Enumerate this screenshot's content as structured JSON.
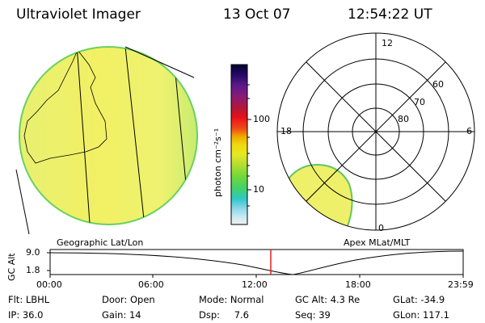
{
  "header": {
    "title": "Ultraviolet Imager",
    "date": "13 Oct 07",
    "time": "12:54:22 UT"
  },
  "colorbar": {
    "unit_label": "photon cm⁻²s⁻¹",
    "ticks": [
      "100",
      "10"
    ],
    "colors": [
      "#000030",
      "#2a0a6a",
      "#5a1a8a",
      "#8a1a7a",
      "#b01838",
      "#e8101a",
      "#f04a18",
      "#f0a800",
      "#f0d810",
      "#e8e820",
      "#b8e030",
      "#70d838",
      "#40d070",
      "#30c8c8",
      "#8ad8e8",
      "#c8e8f0",
      "#f0f0f0"
    ]
  },
  "left_panel": {
    "label": "Geographic Lat/Lon",
    "fill_color": "#ecf06a"
  },
  "polar_panel": {
    "label": "Apex MLat/MLT",
    "mlt_labels": {
      "top": "12",
      "left": "18",
      "right": "6",
      "bottom": "0"
    },
    "mlat_labels": [
      "60",
      "70",
      "80"
    ]
  },
  "altitude_plot": {
    "ylabel": "GC Alt",
    "y_ticks": [
      "9.0",
      "1.8"
    ],
    "x_ticks": [
      "00:00",
      "06:00",
      "12:00",
      "18:00",
      "23:59"
    ],
    "current_time_marker_hours": 12.9,
    "marker_color": "#e02020"
  },
  "status": {
    "filter": {
      "label": "Flt:",
      "value": "LBHL"
    },
    "ip": {
      "label": "IP:",
      "value": "36.0"
    },
    "door": {
      "label": "Door:",
      "value": "Open"
    },
    "gain": {
      "label": "Gain:",
      "value": "14"
    },
    "mode": {
      "label": "Mode:",
      "value": "Normal"
    },
    "dsp": {
      "label": "Dsp:",
      "value": "7.6"
    },
    "gc_alt": {
      "label": "GC Alt:",
      "value": "4.3 Re"
    },
    "seq": {
      "label": "Seq:",
      "value": "39"
    },
    "glat": {
      "label": "GLat:",
      "value": "-34.9"
    },
    "glon": {
      "label": "GLon:",
      "value": "117.1"
    }
  }
}
